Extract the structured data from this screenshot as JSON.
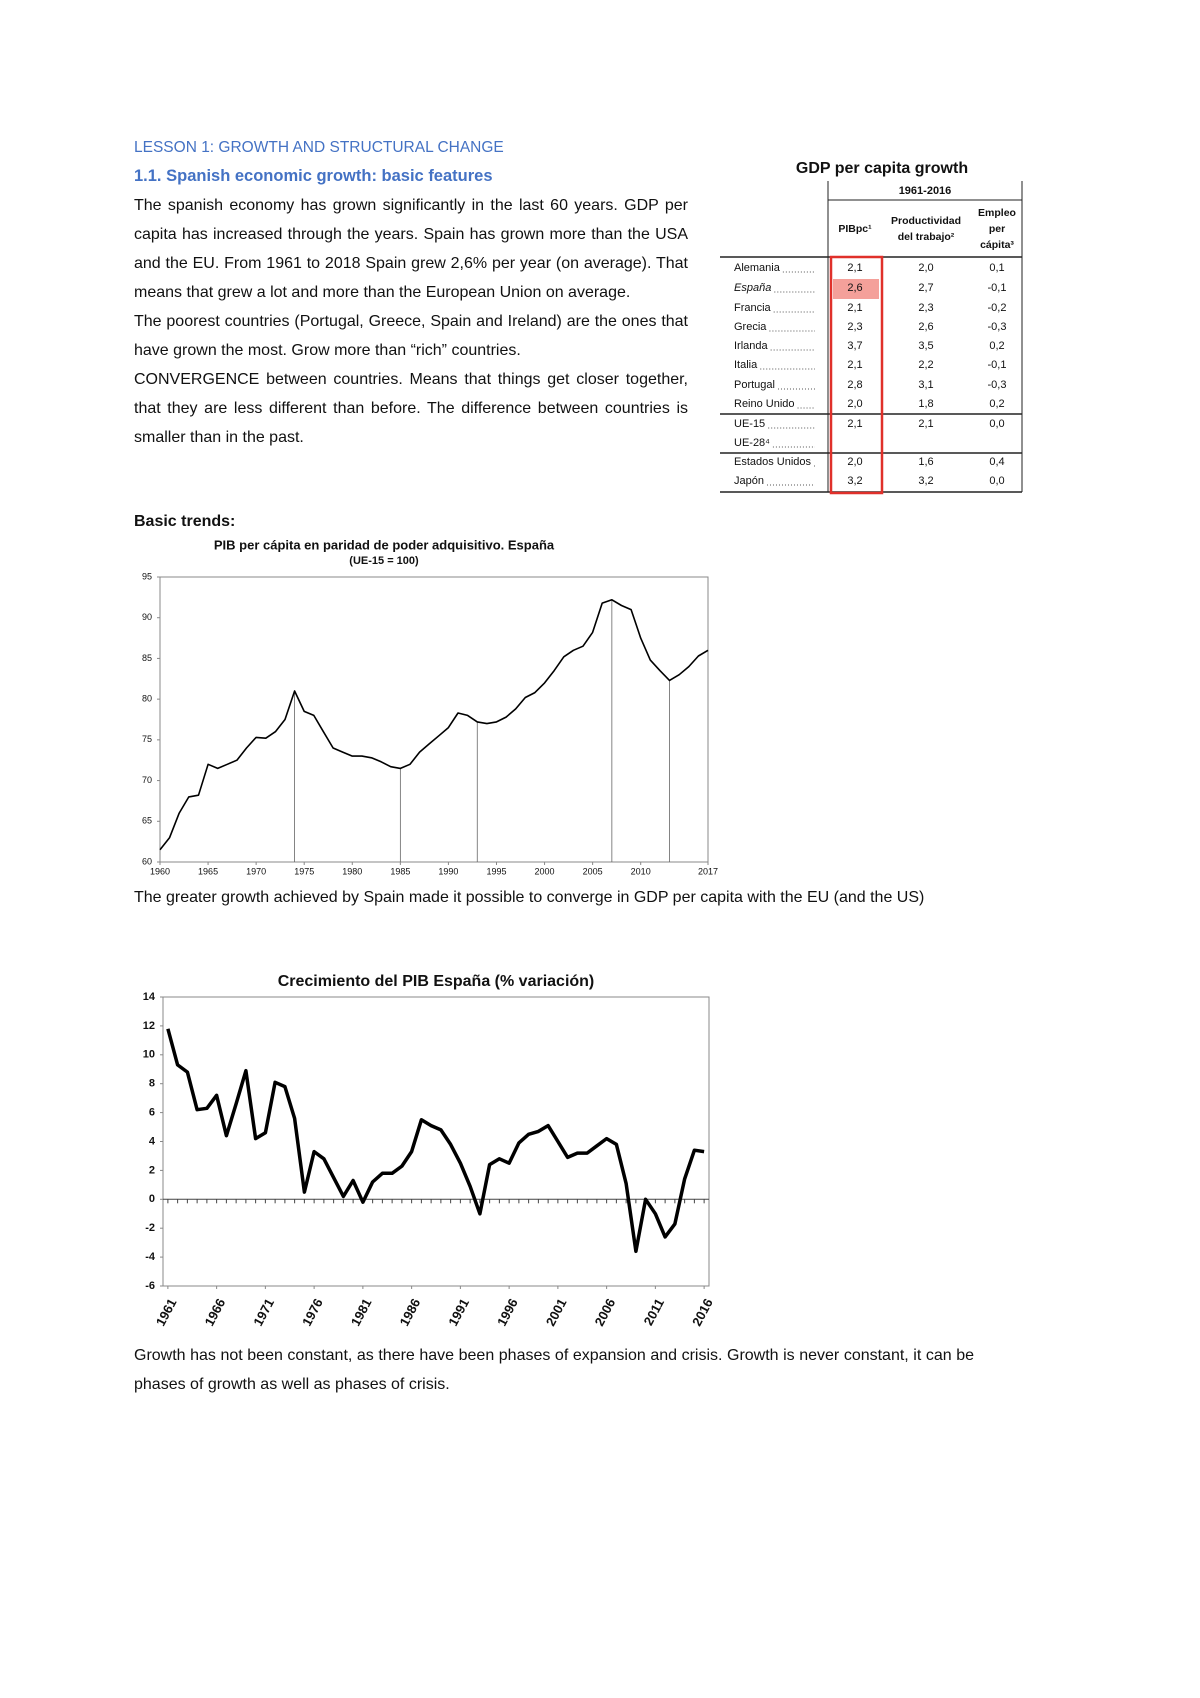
{
  "header": {
    "lesson": "LESSON 1: GROWTH AND STRUCTURAL CHANGE",
    "section": "1.1. Spanish economic growth: basic features"
  },
  "paragraphs": [
    "The spanish economy has grown significantly in the last 60 years. GDP per capita has increased through the years. Spain has grown more than the USA and the EU. From 1961 to 2018 Spain grew 2,6% per year (on average). That means that grew a lot and more than the European Union on average.",
    "The poorest countries (Portugal, Greece, Spain and Ireland) are the ones that have grown the most. Grow more than “rich” countries.",
    "CONVERGENCE between countries. Means that things get closer together, that they are less different than before. The difference between countries is smaller than in the past."
  ],
  "table": {
    "title": "GDP per capita growth",
    "period": "1961-2016",
    "columns": [
      [
        "PIBpc¹"
      ],
      [
        "Productividad",
        "del trabajo²"
      ],
      [
        "Empleo",
        "per",
        "cápita³"
      ]
    ],
    "rows": [
      [
        "Alemania",
        "2,1",
        "2,0",
        "0,1"
      ],
      [
        "España",
        "2,6",
        "2,7",
        "-0,1"
      ],
      [
        "Francia",
        "2,1",
        "2,3",
        "-0,2"
      ],
      [
        "Grecia",
        "2,3",
        "2,6",
        "-0,3"
      ],
      [
        "Irlanda",
        "3,7",
        "3,5",
        "0,2"
      ],
      [
        "Italia",
        "2,1",
        "2,2",
        "-0,1"
      ],
      [
        "Portugal",
        "2,8",
        "3,1",
        "-0,3"
      ],
      [
        "Reino Unido",
        "2,0",
        "1,8",
        "0,2"
      ],
      [
        "UE-15",
        "2,1",
        "2,1",
        "0,0"
      ],
      [
        "UE-28⁴"
      ],
      [
        "Estados Unidos",
        "2,0",
        "1,6",
        "0,4"
      ],
      [
        "Japón",
        "3,2",
        "3,2",
        "0,0"
      ]
    ]
  },
  "basic_trends": "Basic trends:",
  "text_after_chart_1": "The greater growth achieved by Spain made it possible to converge in GDP per capita with the EU (and the US)",
  "text_after_chart_2": "Growth has not been constant, as there have been phases of expansion and crisis. Growth is never constant, it can be phases of growth as well as phases of crisis.",
  "chart_data": [
    {
      "type": "line",
      "title": "PIB per cápita en paridad de poder adquisitivo. España",
      "subtitle": "(UE-15 = 100)",
      "color": "#000000",
      "x": [
        1960,
        1961,
        1962,
        1963,
        1964,
        1965,
        1966,
        1967,
        1968,
        1969,
        1970,
        1971,
        1972,
        1973,
        1974,
        1975,
        1976,
        1977,
        1978,
        1979,
        1980,
        1981,
        1982,
        1983,
        1984,
        1985,
        1986,
        1987,
        1988,
        1989,
        1990,
        1991,
        1992,
        1993,
        1994,
        1995,
        1996,
        1997,
        1998,
        1999,
        2000,
        2001,
        2002,
        2003,
        2004,
        2005,
        2006,
        2007,
        2008,
        2009,
        2010,
        2011,
        2012,
        2013,
        2014,
        2015,
        2016,
        2017
      ],
      "values": [
        61.5,
        63,
        66,
        68,
        68.2,
        72,
        71.5,
        72,
        72.5,
        74,
        75.3,
        75.2,
        76,
        77.5,
        81,
        78.5,
        78,
        76,
        74,
        73.5,
        73,
        73,
        72.8,
        72.3,
        71.7,
        71.5,
        72,
        73.5,
        74.5,
        75.5,
        76.5,
        78.3,
        78,
        77.2,
        77,
        77.2,
        77.8,
        78.8,
        80.2,
        80.8,
        82,
        83.5,
        85.2,
        86,
        86.5,
        88.2,
        91.8,
        92.2,
        91.5,
        91,
        87.5,
        84.8,
        83.5,
        82.3,
        83,
        84,
        85.3,
        86
      ],
      "drop_lines": [
        1974,
        1985,
        1993,
        2007,
        2013
      ],
      "xlim": [
        1960,
        2017
      ],
      "ylim": [
        60,
        95
      ],
      "xticks": [
        1960,
        1965,
        1970,
        1975,
        1980,
        1985,
        1990,
        1995,
        2000,
        2005,
        2010,
        2017
      ],
      "yticks": [
        60,
        65,
        70,
        75,
        80,
        85,
        90,
        95
      ]
    },
    {
      "type": "line",
      "title": "Crecimiento del PIB España (% variación)",
      "color": "#000000",
      "zero_line": true,
      "x": [
        1961,
        1962,
        1963,
        1964,
        1965,
        1966,
        1967,
        1968,
        1969,
        1970,
        1971,
        1972,
        1973,
        1974,
        1975,
        1976,
        1977,
        1978,
        1979,
        1980,
        1981,
        1982,
        1983,
        1984,
        1985,
        1986,
        1987,
        1988,
        1989,
        1990,
        1991,
        1992,
        1993,
        1994,
        1995,
        1996,
        1997,
        1998,
        1999,
        2000,
        2001,
        2002,
        2003,
        2004,
        2005,
        2006,
        2007,
        2008,
        2009,
        2010,
        2011,
        2012,
        2013,
        2014,
        2015,
        2016
      ],
      "values": [
        11.8,
        9.3,
        8.8,
        6.2,
        6.3,
        7.2,
        4.4,
        6.6,
        8.9,
        4.2,
        4.6,
        8.1,
        7.8,
        5.6,
        0.5,
        3.3,
        2.8,
        1.5,
        0.2,
        1.3,
        -0.2,
        1.2,
        1.8,
        1.8,
        2.3,
        3.3,
        5.5,
        5.1,
        4.8,
        3.8,
        2.5,
        0.9,
        -1.0,
        2.4,
        2.8,
        2.5,
        3.9,
        4.5,
        4.7,
        5.1,
        4.0,
        2.9,
        3.2,
        3.2,
        3.7,
        4.2,
        3.8,
        1.1,
        -3.6,
        0.0,
        -1.0,
        -2.6,
        -1.7,
        1.4,
        3.4,
        3.3
      ],
      "xlim": [
        1960.5,
        2016.5
      ],
      "ylim": [
        -6,
        14
      ],
      "xticks": [
        1961,
        1966,
        1971,
        1976,
        1981,
        1986,
        1991,
        1996,
        2001,
        2006,
        2011,
        2016
      ],
      "yticks": [
        -6,
        -4,
        -2,
        0,
        2,
        4,
        6,
        8,
        10,
        12,
        14
      ]
    }
  ]
}
